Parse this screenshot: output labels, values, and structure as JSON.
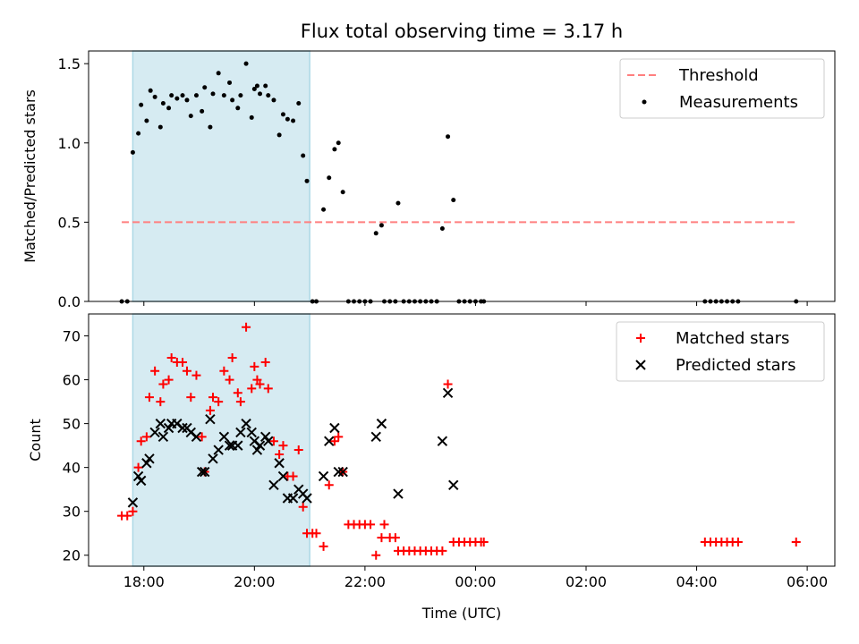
{
  "colors": {
    "shade": "#add8e6",
    "threshold": "#ff7f7f",
    "matched": "#ff0000",
    "predicted": "#000000",
    "measurement": "#000000"
  },
  "chart_data": [
    {
      "type": "scatter",
      "title": "Flux total observing time = 3.17 h",
      "xlabel": "",
      "ylabel": "Matched/Predicted stars",
      "xlim": [
        17.0,
        6.5
      ],
      "ylim": [
        0.0,
        1.58
      ],
      "yticks": [
        0.0,
        0.5,
        1.0,
        1.5
      ],
      "ytick_labels": [
        "0.0",
        "0.5",
        "1.0",
        "1.5"
      ],
      "shaded_span": [
        17.8,
        21.0
      ],
      "threshold": {
        "name": "Threshold",
        "y": 0.5,
        "x_range": [
          17.6,
          5.8
        ]
      },
      "legend": [
        "Threshold",
        "Measurements"
      ],
      "legend_position": "top-right",
      "series": [
        {
          "name": "Measurements",
          "points": [
            [
              17.6,
              0
            ],
            [
              17.7,
              0
            ],
            [
              17.8,
              0.94
            ],
            [
              17.9,
              1.06
            ],
            [
              17.95,
              1.24
            ],
            [
              18.05,
              1.14
            ],
            [
              18.12,
              1.33
            ],
            [
              18.2,
              1.29
            ],
            [
              18.3,
              1.1
            ],
            [
              18.35,
              1.25
            ],
            [
              18.45,
              1.22
            ],
            [
              18.5,
              1.3
            ],
            [
              18.6,
              1.28
            ],
            [
              18.7,
              1.3
            ],
            [
              18.78,
              1.27
            ],
            [
              18.85,
              1.17
            ],
            [
              18.95,
              1.3
            ],
            [
              19.05,
              1.2
            ],
            [
              19.1,
              1.35
            ],
            [
              19.2,
              1.1
            ],
            [
              19.25,
              1.31
            ],
            [
              19.35,
              1.44
            ],
            [
              19.45,
              1.3
            ],
            [
              19.55,
              1.38
            ],
            [
              19.6,
              1.27
            ],
            [
              19.7,
              1.22
            ],
            [
              19.75,
              1.3
            ],
            [
              19.85,
              1.5
            ],
            [
              19.95,
              1.16
            ],
            [
              20.0,
              1.34
            ],
            [
              20.05,
              1.36
            ],
            [
              20.1,
              1.31
            ],
            [
              20.2,
              1.36
            ],
            [
              20.25,
              1.3
            ],
            [
              20.35,
              1.27
            ],
            [
              20.45,
              1.05
            ],
            [
              20.52,
              1.18
            ],
            [
              20.6,
              1.15
            ],
            [
              20.7,
              1.14
            ],
            [
              20.8,
              1.25
            ],
            [
              20.88,
              0.92
            ],
            [
              20.95,
              0.76
            ],
            [
              21.05,
              0
            ],
            [
              21.12,
              0
            ],
            [
              21.25,
              0.58
            ],
            [
              21.35,
              0.78
            ],
            [
              21.45,
              0.96
            ],
            [
              21.52,
              1.0
            ],
            [
              21.6,
              0.69
            ],
            [
              21.7,
              0
            ],
            [
              21.8,
              0
            ],
            [
              21.9,
              0
            ],
            [
              22.0,
              0
            ],
            [
              22.1,
              0
            ],
            [
              22.2,
              0.43
            ],
            [
              22.3,
              0.48
            ],
            [
              22.35,
              0
            ],
            [
              22.45,
              0
            ],
            [
              22.55,
              0
            ],
            [
              22.6,
              0.62
            ],
            [
              22.7,
              0
            ],
            [
              22.8,
              0
            ],
            [
              22.9,
              0
            ],
            [
              23.0,
              0
            ],
            [
              23.1,
              0
            ],
            [
              23.2,
              0
            ],
            [
              23.3,
              0
            ],
            [
              23.4,
              0.46
            ],
            [
              23.5,
              1.04
            ],
            [
              23.6,
              0.64
            ],
            [
              23.7,
              0
            ],
            [
              23.8,
              0
            ],
            [
              23.9,
              0
            ],
            [
              24.0,
              0
            ],
            [
              24.1,
              0
            ],
            [
              24.15,
              0
            ],
            [
              28.15,
              0
            ],
            [
              28.25,
              0
            ],
            [
              28.35,
              0
            ],
            [
              28.45,
              0
            ],
            [
              28.55,
              0
            ],
            [
              28.65,
              0
            ],
            [
              28.75,
              0
            ],
            [
              29.8,
              0
            ]
          ]
        }
      ]
    },
    {
      "type": "scatter",
      "title": "",
      "xlabel": "Time (UTC)",
      "ylabel": "Count",
      "xlim": [
        17.0,
        6.5
      ],
      "ylim": [
        17.5,
        75.0
      ],
      "yticks": [
        20,
        30,
        40,
        50,
        60,
        70
      ],
      "ytick_labels": [
        "20",
        "30",
        "40",
        "50",
        "60",
        "70"
      ],
      "xtick_labels": [
        "18:00",
        "20:00",
        "22:00",
        "00:00",
        "02:00",
        "04:00",
        "06:00"
      ],
      "shaded_span": [
        17.8,
        21.0
      ],
      "legend": [
        "Matched stars",
        "Predicted stars"
      ],
      "legend_position": "top-right",
      "series": [
        {
          "name": "Matched stars",
          "points": [
            [
              17.6,
              29
            ],
            [
              17.7,
              29
            ],
            [
              17.8,
              30
            ],
            [
              17.9,
              40
            ],
            [
              17.95,
              46
            ],
            [
              18.05,
              47
            ],
            [
              18.1,
              56
            ],
            [
              18.2,
              62
            ],
            [
              18.3,
              55
            ],
            [
              18.35,
              59
            ],
            [
              18.45,
              60
            ],
            [
              18.5,
              65
            ],
            [
              18.6,
              64
            ],
            [
              18.7,
              64
            ],
            [
              18.78,
              62
            ],
            [
              18.85,
              56
            ],
            [
              18.95,
              61
            ],
            [
              19.05,
              47
            ],
            [
              19.1,
              39
            ],
            [
              19.2,
              53
            ],
            [
              19.25,
              56
            ],
            [
              19.35,
              55
            ],
            [
              19.45,
              62
            ],
            [
              19.55,
              60
            ],
            [
              19.6,
              65
            ],
            [
              19.7,
              57
            ],
            [
              19.75,
              55
            ],
            [
              19.85,
              72
            ],
            [
              19.95,
              58
            ],
            [
              20.0,
              63
            ],
            [
              20.05,
              60
            ],
            [
              20.1,
              59
            ],
            [
              20.2,
              64
            ],
            [
              20.25,
              58
            ],
            [
              20.35,
              46
            ],
            [
              20.45,
              43
            ],
            [
              20.52,
              45
            ],
            [
              20.6,
              38
            ],
            [
              20.7,
              38
            ],
            [
              20.8,
              44
            ],
            [
              20.88,
              31
            ],
            [
              20.95,
              25
            ],
            [
              21.05,
              25
            ],
            [
              21.12,
              25
            ],
            [
              21.25,
              22
            ],
            [
              21.35,
              36
            ],
            [
              21.45,
              46
            ],
            [
              21.52,
              47
            ],
            [
              21.6,
              39
            ],
            [
              21.7,
              27
            ],
            [
              21.8,
              27
            ],
            [
              21.9,
              27
            ],
            [
              22.0,
              27
            ],
            [
              22.1,
              27
            ],
            [
              22.2,
              20
            ],
            [
              22.3,
              24
            ],
            [
              22.35,
              27
            ],
            [
              22.45,
              24
            ],
            [
              22.55,
              24
            ],
            [
              22.6,
              21
            ],
            [
              22.7,
              21
            ],
            [
              22.8,
              21
            ],
            [
              22.9,
              21
            ],
            [
              23.0,
              21
            ],
            [
              23.1,
              21
            ],
            [
              23.2,
              21
            ],
            [
              23.3,
              21
            ],
            [
              23.4,
              21
            ],
            [
              23.5,
              59
            ],
            [
              23.6,
              23
            ],
            [
              23.7,
              23
            ],
            [
              23.8,
              23
            ],
            [
              23.9,
              23
            ],
            [
              24.0,
              23
            ],
            [
              24.1,
              23
            ],
            [
              24.15,
              23
            ],
            [
              28.15,
              23
            ],
            [
              28.25,
              23
            ],
            [
              28.35,
              23
            ],
            [
              28.45,
              23
            ],
            [
              28.55,
              23
            ],
            [
              28.65,
              23
            ],
            [
              28.75,
              23
            ],
            [
              29.8,
              23
            ]
          ]
        },
        {
          "name": "Predicted stars",
          "points": [
            [
              17.8,
              32
            ],
            [
              17.9,
              38
            ],
            [
              17.95,
              37
            ],
            [
              18.05,
              41
            ],
            [
              18.1,
              42
            ],
            [
              18.2,
              48
            ],
            [
              18.3,
              50
            ],
            [
              18.35,
              47
            ],
            [
              18.45,
              49
            ],
            [
              18.5,
              50
            ],
            [
              18.6,
              50
            ],
            [
              18.7,
              49
            ],
            [
              18.78,
              49
            ],
            [
              18.85,
              48
            ],
            [
              18.95,
              47
            ],
            [
              19.05,
              39
            ],
            [
              19.1,
              39
            ],
            [
              19.2,
              51
            ],
            [
              19.25,
              42
            ],
            [
              19.35,
              44
            ],
            [
              19.45,
              47
            ],
            [
              19.55,
              45
            ],
            [
              19.6,
              45
            ],
            [
              19.7,
              45
            ],
            [
              19.75,
              48
            ],
            [
              19.85,
              50
            ],
            [
              19.95,
              48
            ],
            [
              20.0,
              46
            ],
            [
              20.05,
              44
            ],
            [
              20.1,
              45
            ],
            [
              20.2,
              47
            ],
            [
              20.25,
              46
            ],
            [
              20.35,
              36
            ],
            [
              20.45,
              41
            ],
            [
              20.52,
              38
            ],
            [
              20.6,
              33
            ],
            [
              20.7,
              33
            ],
            [
              20.8,
              35
            ],
            [
              20.88,
              34
            ],
            [
              20.95,
              33
            ],
            [
              21.25,
              38
            ],
            [
              21.35,
              46
            ],
            [
              21.45,
              49
            ],
            [
              21.52,
              39
            ],
            [
              21.6,
              39
            ],
            [
              22.2,
              47
            ],
            [
              22.3,
              50
            ],
            [
              22.6,
              34
            ],
            [
              23.4,
              46
            ],
            [
              23.5,
              57
            ],
            [
              23.6,
              36
            ]
          ]
        }
      ]
    }
  ]
}
